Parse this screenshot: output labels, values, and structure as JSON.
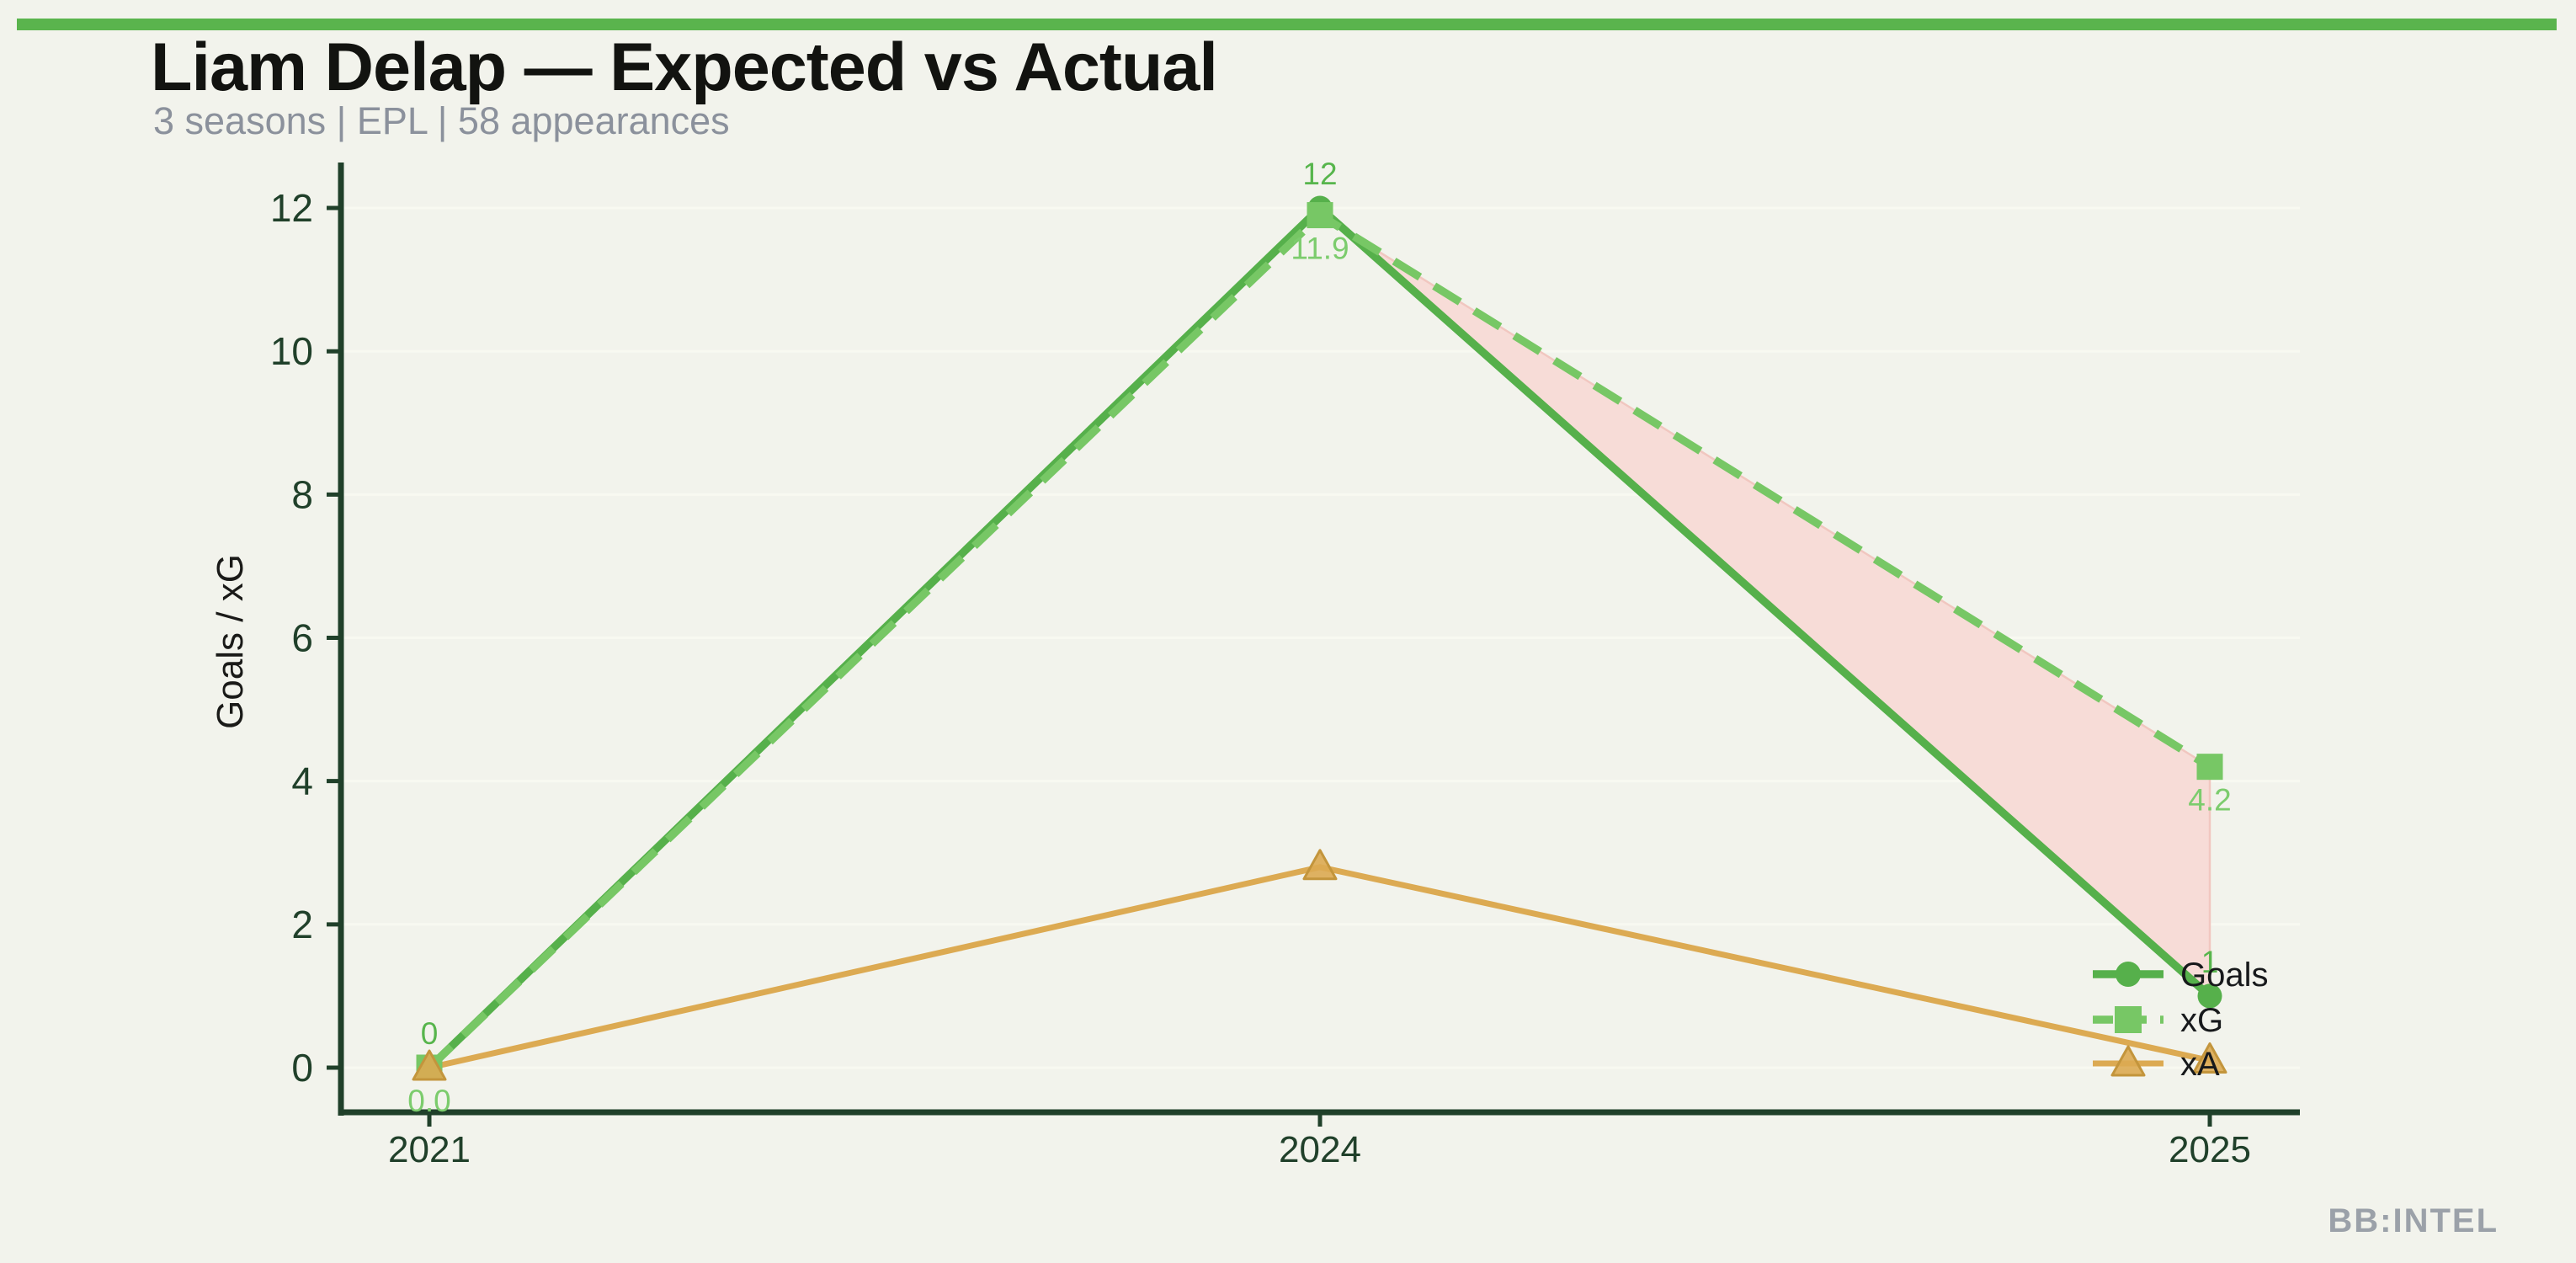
{
  "page": {
    "background": "#f2f3ec",
    "accent_bar_color": "#5ab44d",
    "watermark": "BB:INTEL",
    "watermark_color": "#9ba1a9"
  },
  "header": {
    "title": "Liam Delap — Expected vs Actual",
    "title_color": "#121310",
    "subtitle": "3 seasons | EPL | 58 appearances",
    "subtitle_color": "#8b919c"
  },
  "chart_data": {
    "type": "line",
    "title": "Liam Delap — Expected vs Actual",
    "subtitle": "3 seasons | EPL | 58 appearances",
    "categories": [
      "2021",
      "2024",
      "2025"
    ],
    "series": [
      {
        "name": "Goals",
        "values": [
          0,
          12,
          1
        ],
        "color": "#56b04b",
        "line_style": "solid",
        "marker": "circle",
        "point_labels": [
          "0",
          "12",
          "1"
        ],
        "point_label_color": "#57b54c",
        "point_label_position": "above"
      },
      {
        "name": "xG",
        "values": [
          0.0,
          11.9,
          4.2
        ],
        "color": "#77c765",
        "line_style": "dashed",
        "marker": "square",
        "point_labels": [
          "0.0",
          "11.9",
          "4.2"
        ],
        "point_label_color": "#7ccc6d",
        "point_label_position": "below"
      },
      {
        "name": "xA",
        "values": [
          0.0,
          2.8,
          0.1
        ],
        "color": "#dcaa52",
        "line_style": "solid",
        "marker": "triangle",
        "point_labels": [],
        "point_label_color": "",
        "point_label_position": "none",
        "marker_edge_color": "#c3953c"
      }
    ],
    "xlabel": "",
    "ylabel": "Goals / xG",
    "ylabel_color": "#1a1a18",
    "yticks": [
      0,
      2,
      4,
      6,
      8,
      10,
      12
    ],
    "ylim": [
      -0.63,
      12.65
    ],
    "grid": "horizontal-faint",
    "gridline_color": "#f8f9f1",
    "axis_color": "#20402a",
    "tick_label_color": "#20402a",
    "legend": {
      "position": "inside-lower-right",
      "entries": [
        "Goals",
        "xG",
        "xA"
      ],
      "label_color": "#17191b"
    },
    "underperformance_region": {
      "between_series": [
        "Goals",
        "xG"
      ],
      "x_range": [
        "2024",
        "2025"
      ],
      "fill": "#f7dcd7",
      "edge": "#f1c7c0"
    }
  }
}
